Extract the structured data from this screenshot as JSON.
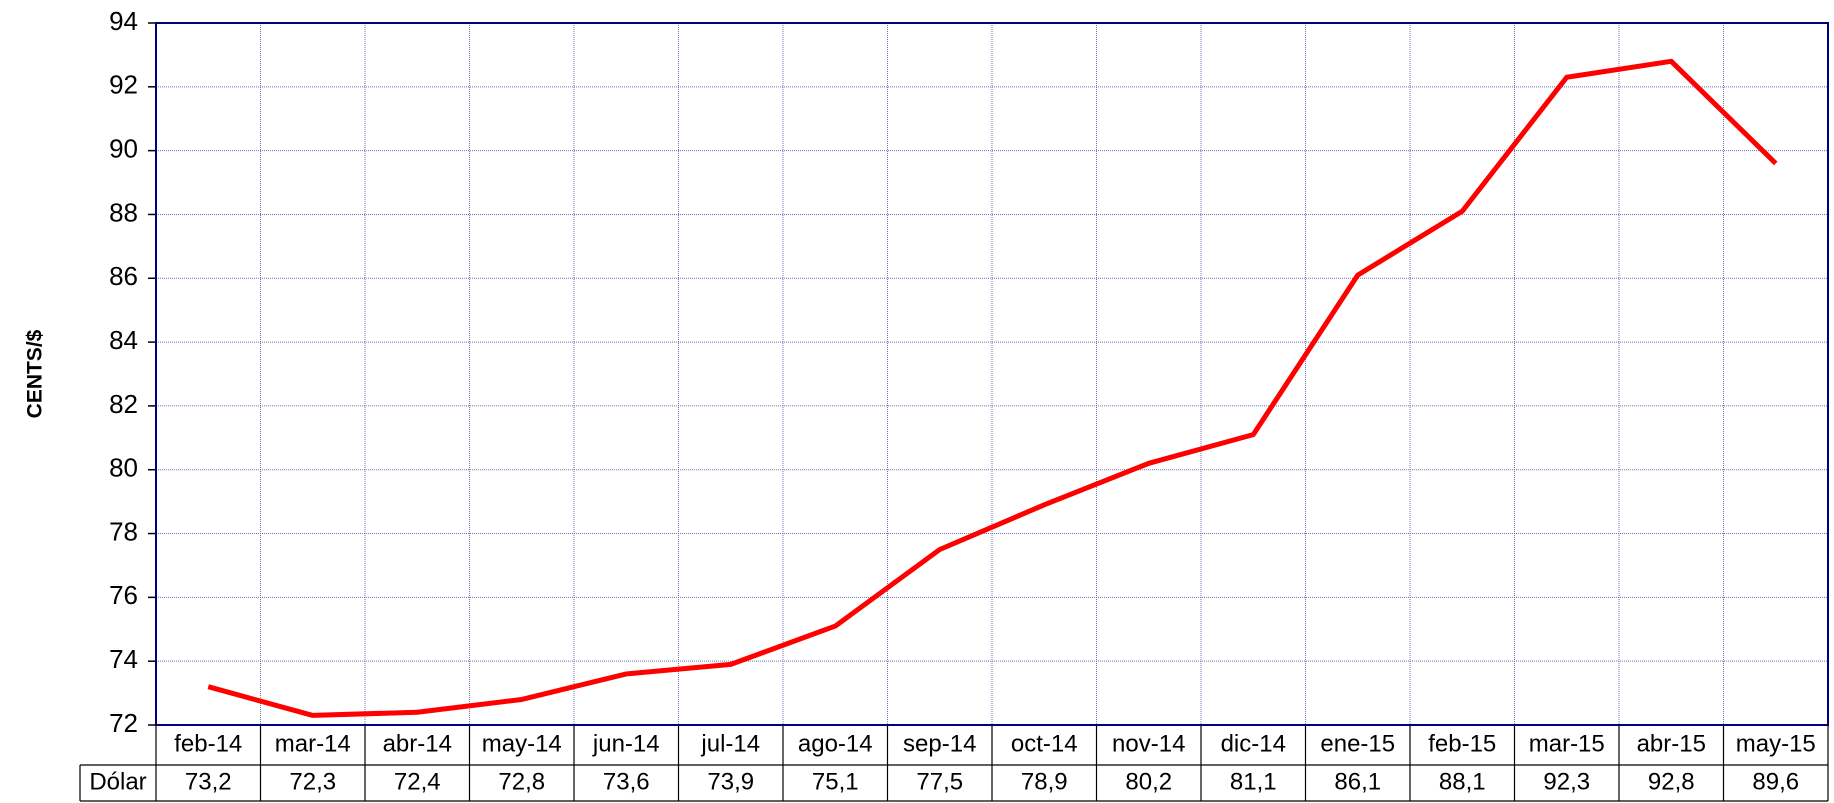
{
  "chart_data": {
    "type": "line",
    "y_label": "CENTS/$",
    "categories": [
      "feb-14",
      "mar-14",
      "abr-14",
      "may-14",
      "jun-14",
      "jul-14",
      "ago-14",
      "sep-14",
      "oct-14",
      "nov-14",
      "dic-14",
      "ene-15",
      "feb-15",
      "mar-15",
      "abr-15",
      "may-15"
    ],
    "series": [
      {
        "name": "Dólar",
        "color": "#ff0000",
        "values": [
          73.2,
          72.3,
          72.4,
          72.8,
          73.6,
          73.9,
          75.1,
          77.5,
          78.9,
          80.2,
          81.1,
          86.1,
          88.1,
          92.3,
          92.8,
          89.6
        ],
        "value_labels": [
          "73,2",
          "72,3",
          "72,4",
          "72,8",
          "73,6",
          "73,9",
          "75,1",
          "77,5",
          "78,9",
          "80,2",
          "81,1",
          "86,1",
          "88,1",
          "92,3",
          "92,8",
          "89,6"
        ]
      }
    ],
    "ylim": [
      72,
      94
    ],
    "yticks": [
      72,
      74,
      76,
      78,
      80,
      82,
      84,
      86,
      88,
      90,
      92,
      94
    ],
    "grid": true
  }
}
